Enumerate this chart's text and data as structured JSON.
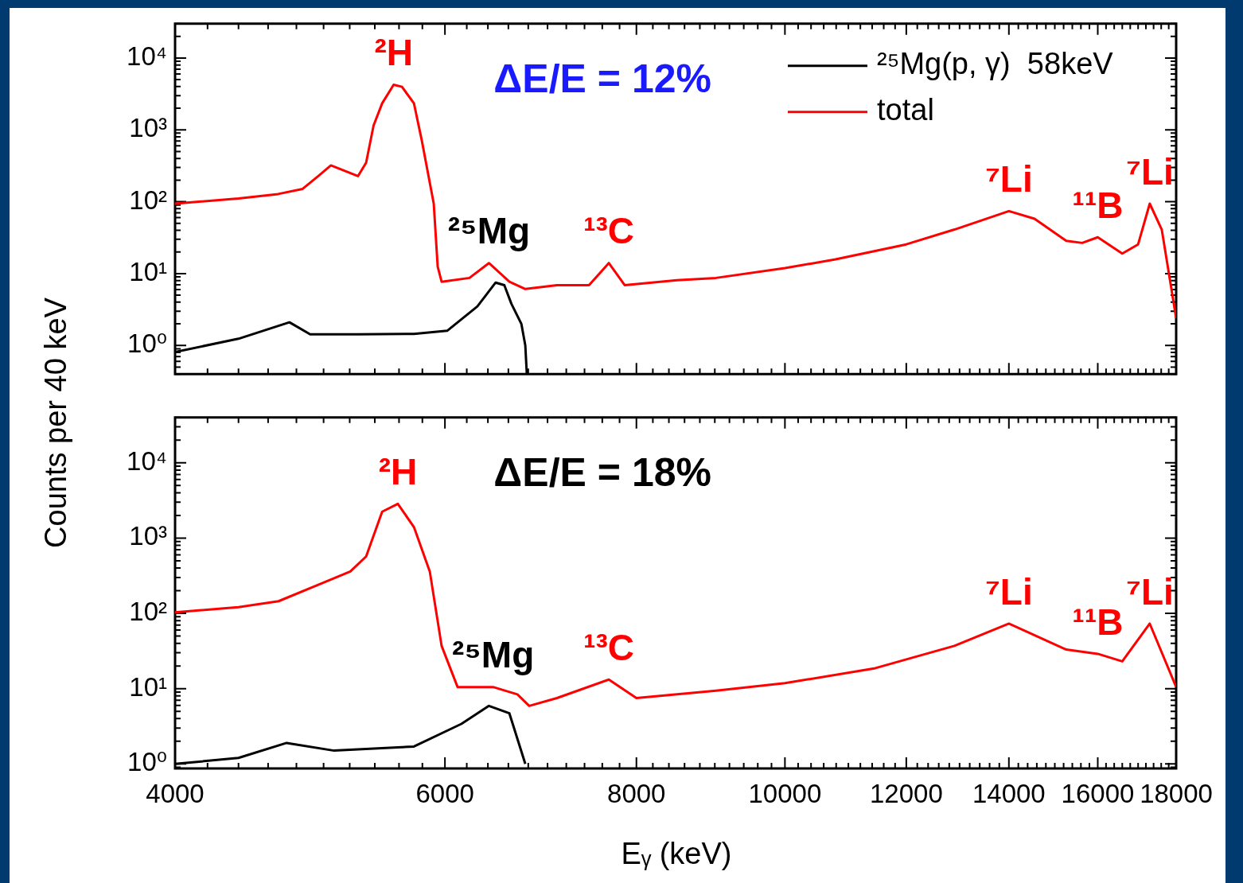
{
  "chart_data": [
    {
      "type": "line",
      "title": "ΔE/E = 12%",
      "ylabel": "Counts per 40 keV",
      "log": "xy",
      "legend": "top right",
      "tick_labels": "y",
      "xlim": [
        4000,
        18000
      ],
      "xticks": [
        4000,
        {
          "value": 4200,
          "label": null
        },
        {
          "value": 4400,
          "label": null
        },
        {
          "value": 4600,
          "label": null
        },
        {
          "value": 4800,
          "label": null
        },
        {
          "value": 5000,
          "label": null
        },
        {
          "value": 5200,
          "label": null
        },
        {
          "value": 5400,
          "label": null
        },
        {
          "value": 5600,
          "label": null
        },
        {
          "value": 5800,
          "label": null
        },
        6000,
        {
          "value": 6200,
          "label": null
        },
        {
          "value": 6400,
          "label": null
        },
        {
          "value": 6600,
          "label": null
        },
        {
          "value": 6800,
          "label": null
        },
        {
          "value": 7000,
          "label": null
        },
        {
          "value": 7200,
          "label": null
        },
        {
          "value": 7400,
          "label": null
        },
        {
          "value": 7600,
          "label": null
        },
        {
          "value": 7800,
          "label": null
        },
        8000,
        {
          "value": 8200,
          "label": null
        },
        {
          "value": 8400,
          "label": null
        },
        {
          "value": 8600,
          "label": null
        },
        {
          "value": 8800,
          "label": null
        },
        {
          "value": 9000,
          "label": null
        },
        {
          "value": 9200,
          "label": null
        },
        {
          "value": 9400,
          "label": null
        },
        {
          "value": 9600,
          "label": null
        },
        {
          "value": 9800,
          "label": null
        },
        10000,
        {
          "value": 10200,
          "label": null
        },
        {
          "value": 10400,
          "label": null
        },
        {
          "value": 10600,
          "label": null
        },
        {
          "value": 10800,
          "label": null
        },
        {
          "value": 11000,
          "label": null
        },
        {
          "value": 11200,
          "label": null
        },
        {
          "value": 11400,
          "label": null
        },
        {
          "value": 11600,
          "label": null
        },
        {
          "value": 11800,
          "label": null
        },
        12000,
        {
          "value": 12200,
          "label": null
        },
        {
          "value": 12400,
          "label": null
        },
        {
          "value": 12600,
          "label": null
        },
        {
          "value": 12800,
          "label": null
        },
        {
          "value": 13000,
          "label": null
        },
        {
          "value": 13200,
          "label": null
        },
        {
          "value": 13400,
          "label": null
        },
        {
          "value": 13600,
          "label": null
        },
        {
          "value": 13800,
          "label": null
        },
        14000,
        {
          "value": 14200,
          "label": null
        },
        {
          "value": 14400,
          "label": null
        },
        {
          "value": 14600,
          "label": null
        },
        {
          "value": 14800,
          "label": null
        },
        {
          "value": 15000,
          "label": null
        },
        {
          "value": 15200,
          "label": null
        },
        {
          "value": 15400,
          "label": null
        },
        {
          "value": 15600,
          "label": null
        },
        {
          "value": 15800,
          "label": null
        },
        16000,
        {
          "value": 16200,
          "label": null
        },
        {
          "value": 16400,
          "label": null
        },
        {
          "value": 16600,
          "label": null
        },
        {
          "value": 16800,
          "label": null
        },
        {
          "value": 17000,
          "label": null
        },
        {
          "value": 17200,
          "label": null
        },
        {
          "value": 17400,
          "label": null
        },
        {
          "value": 17600,
          "label": null
        },
        {
          "value": 17800,
          "label": null
        },
        18000
      ],
      "ylim": [
        0.4,
        30000
      ],
      "yticks": [
        {
          "value": 0.4,
          "label": null
        },
        {
          "value": 0.5,
          "label": null
        },
        {
          "value": 0.6,
          "label": null
        },
        {
          "value": 0.7,
          "label": null
        },
        {
          "value": 0.8,
          "label": null
        },
        {
          "value": 0.9,
          "label": null
        },
        {
          "value": 1,
          "label": "10⁰"
        },
        {
          "value": 2,
          "label": null
        },
        {
          "value": 3,
          "label": null
        },
        {
          "value": 4,
          "label": null
        },
        {
          "value": 5,
          "label": null
        },
        {
          "value": 6,
          "label": null
        },
        {
          "value": 7,
          "label": null
        },
        {
          "value": 8,
          "label": null
        },
        {
          "value": 9,
          "label": null
        },
        {
          "value": 10,
          "label": "10¹"
        },
        {
          "value": 20,
          "label": null
        },
        {
          "value": 30,
          "label": null
        },
        {
          "value": 40,
          "label": null
        },
        {
          "value": 50,
          "label": null
        },
        {
          "value": 60,
          "label": null
        },
        {
          "value": 70,
          "label": null
        },
        {
          "value": 80,
          "label": null
        },
        {
          "value": 90,
          "label": null
        },
        {
          "value": 100,
          "label": "10²"
        },
        {
          "value": 200,
          "label": null
        },
        {
          "value": 300,
          "label": null
        },
        {
          "value": 400,
          "label": null
        },
        {
          "value": 500,
          "label": null
        },
        {
          "value": 600,
          "label": null
        },
        {
          "value": 700,
          "label": null
        },
        {
          "value": 800,
          "label": null
        },
        {
          "value": 900,
          "label": null
        },
        {
          "value": 1000,
          "label": "10³"
        },
        {
          "value": 2000,
          "label": null
        },
        {
          "value": 3000,
          "label": null
        },
        {
          "value": 4000,
          "label": null
        },
        {
          "value": 5000,
          "label": null
        },
        {
          "value": 6000,
          "label": null
        },
        {
          "value": 7000,
          "label": null
        },
        {
          "value": 8000,
          "label": null
        },
        {
          "value": 9000,
          "label": null
        },
        {
          "value": 10000,
          "label": "10⁴"
        },
        {
          "value": 20000,
          "label": null
        },
        {
          "value": 30000,
          "label": null
        }
      ],
      "series": [
        {
          "name": "²⁵Mg(p, γ)  58keV",
          "color": "#000000",
          "x": [
            4000,
            4400,
            4750,
            4900,
            5265,
            5727,
            6020,
            6300,
            6475,
            6560,
            6630,
            6730,
            6770,
            6785
          ],
          "values": [
            0.81,
            1.24,
            2.1,
            1.43,
            1.43,
            1.45,
            1.6,
            3.5,
            7.5,
            6.9,
            3.8,
            2,
            1,
            0.41
          ]
        },
        {
          "name": "total",
          "color": "#ff0000",
          "x": [
            4000,
            4400,
            4670,
            4845,
            4960,
            5055,
            5265,
            5330,
            5390,
            5460,
            5555,
            5625,
            5727,
            5795,
            5900,
            5935,
            5970,
            6225,
            6410,
            6610,
            6770,
            7100,
            7450,
            7675,
            7860,
            8500,
            9015,
            10000,
            10790,
            12000,
            12900,
            13540,
            14000,
            14550,
            15260,
            15630,
            16000,
            16600,
            17000,
            17300,
            17615,
            18000
          ],
          "values": [
            94,
            111,
            128,
            151,
            227,
            320,
            227,
            350,
            1150,
            2340,
            4250,
            3970,
            2340,
            710,
            94,
            12.5,
            7.7,
            8.7,
            14,
            7.7,
            6.1,
            6.9,
            6.9,
            14,
            6.9,
            8.1,
            8.7,
            11.9,
            15.8,
            25.5,
            41,
            58,
            74,
            58,
            28.6,
            26.7,
            32,
            19,
            25.5,
            94,
            41,
            2.4
          ]
        }
      ],
      "annotations": [
        {
          "text": "²H",
          "x": 5555,
          "y": 4250
        },
        {
          "text": "²⁵Mg",
          "x": 6410,
          "y": 14
        },
        {
          "text": "¹³C",
          "x": 7675,
          "y": 14
        },
        {
          "text": "⁷Li",
          "x": 14000,
          "y": 74
        },
        {
          "text": "¹¹B",
          "x": 16000,
          "y": 32
        },
        {
          "text": "⁷Li",
          "x": 17300,
          "y": 94
        }
      ]
    },
    {
      "type": "line",
      "title": "ΔE/E = 18%",
      "xlabel": "Eᵧ (keV)",
      "log": "xy",
      "xlim": [
        4000,
        18000
      ],
      "xticks": [
        4000,
        {
          "value": 4200,
          "label": null
        },
        {
          "value": 4400,
          "label": null
        },
        {
          "value": 4600,
          "label": null
        },
        {
          "value": 4800,
          "label": null
        },
        {
          "value": 5000,
          "label": null
        },
        {
          "value": 5200,
          "label": null
        },
        {
          "value": 5400,
          "label": null
        },
        {
          "value": 5600,
          "label": null
        },
        {
          "value": 5800,
          "label": null
        },
        6000,
        {
          "value": 6200,
          "label": null
        },
        {
          "value": 6400,
          "label": null
        },
        {
          "value": 6600,
          "label": null
        },
        {
          "value": 6800,
          "label": null
        },
        {
          "value": 7000,
          "label": null
        },
        {
          "value": 7200,
          "label": null
        },
        {
          "value": 7400,
          "label": null
        },
        {
          "value": 7600,
          "label": null
        },
        {
          "value": 7800,
          "label": null
        },
        8000,
        {
          "value": 8200,
          "label": null
        },
        {
          "value": 8400,
          "label": null
        },
        {
          "value": 8600,
          "label": null
        },
        {
          "value": 8800,
          "label": null
        },
        {
          "value": 9000,
          "label": null
        },
        {
          "value": 9200,
          "label": null
        },
        {
          "value": 9400,
          "label": null
        },
        {
          "value": 9600,
          "label": null
        },
        {
          "value": 9800,
          "label": null
        },
        10000,
        {
          "value": 10200,
          "label": null
        },
        {
          "value": 10400,
          "label": null
        },
        {
          "value": 10600,
          "label": null
        },
        {
          "value": 10800,
          "label": null
        },
        {
          "value": 11000,
          "label": null
        },
        {
          "value": 11200,
          "label": null
        },
        {
          "value": 11400,
          "label": null
        },
        {
          "value": 11600,
          "label": null
        },
        {
          "value": 11800,
          "label": null
        },
        12000,
        {
          "value": 12200,
          "label": null
        },
        {
          "value": 12400,
          "label": null
        },
        {
          "value": 12600,
          "label": null
        },
        {
          "value": 12800,
          "label": null
        },
        {
          "value": 13000,
          "label": null
        },
        {
          "value": 13200,
          "label": null
        },
        {
          "value": 13400,
          "label": null
        },
        {
          "value": 13600,
          "label": null
        },
        {
          "value": 13800,
          "label": null
        },
        14000,
        {
          "value": 14200,
          "label": null
        },
        {
          "value": 14400,
          "label": null
        },
        {
          "value": 14600,
          "label": null
        },
        {
          "value": 14800,
          "label": null
        },
        {
          "value": 15000,
          "label": null
        },
        {
          "value": 15200,
          "label": null
        },
        {
          "value": 15400,
          "label": null
        },
        {
          "value": 15600,
          "label": null
        },
        {
          "value": 15800,
          "label": null
        },
        16000,
        {
          "value": 16200,
          "label": null
        },
        {
          "value": 16400,
          "label": null
        },
        {
          "value": 16600,
          "label": null
        },
        {
          "value": 16800,
          "label": null
        },
        {
          "value": 17000,
          "label": null
        },
        {
          "value": 17200,
          "label": null
        },
        {
          "value": 17400,
          "label": null
        },
        {
          "value": 17600,
          "label": null
        },
        {
          "value": 17800,
          "label": null
        },
        18000
      ],
      "ylim": [
        0.87,
        40000
      ],
      "yticks": [
        {
          "value": 0.9,
          "label": null
        },
        {
          "value": 1,
          "label": "10⁰"
        },
        {
          "value": 2,
          "label": null
        },
        {
          "value": 3,
          "label": null
        },
        {
          "value": 4,
          "label": null
        },
        {
          "value": 5,
          "label": null
        },
        {
          "value": 6,
          "label": null
        },
        {
          "value": 7,
          "label": null
        },
        {
          "value": 8,
          "label": null
        },
        {
          "value": 9,
          "label": null
        },
        {
          "value": 10,
          "label": "10¹"
        },
        {
          "value": 20,
          "label": null
        },
        {
          "value": 30,
          "label": null
        },
        {
          "value": 40,
          "label": null
        },
        {
          "value": 50,
          "label": null
        },
        {
          "value": 60,
          "label": null
        },
        {
          "value": 70,
          "label": null
        },
        {
          "value": 80,
          "label": null
        },
        {
          "value": 90,
          "label": null
        },
        {
          "value": 100,
          "label": "10²"
        },
        {
          "value": 200,
          "label": null
        },
        {
          "value": 300,
          "label": null
        },
        {
          "value": 400,
          "label": null
        },
        {
          "value": 500,
          "label": null
        },
        {
          "value": 600,
          "label": null
        },
        {
          "value": 700,
          "label": null
        },
        {
          "value": 800,
          "label": null
        },
        {
          "value": 900,
          "label": null
        },
        {
          "value": 1000,
          "label": "10³"
        },
        {
          "value": 2000,
          "label": null
        },
        {
          "value": 3000,
          "label": null
        },
        {
          "value": 4000,
          "label": null
        },
        {
          "value": 5000,
          "label": null
        },
        {
          "value": 6000,
          "label": null
        },
        {
          "value": 7000,
          "label": null
        },
        {
          "value": 8000,
          "label": null
        },
        {
          "value": 9000,
          "label": null
        },
        {
          "value": 10000,
          "label": "10⁴"
        },
        {
          "value": 20000,
          "label": null
        },
        {
          "value": 30000,
          "label": null
        },
        {
          "value": 40000,
          "label": null
        }
      ],
      "series": [
        {
          "color": "#000000",
          "x": [
            4000,
            4400,
            4730,
            5080,
            5727,
            6150,
            6410,
            6610,
            6770
          ],
          "values": [
            1.0,
            1.2,
            1.9,
            1.5,
            1.7,
            3.4,
            5.9,
            4.7,
            1.0
          ]
        },
        {
          "color": "#ff0000",
          "x": [
            4000,
            4400,
            4673,
            4960,
            5205,
            5330,
            5460,
            5590,
            5727,
            5865,
            5970,
            6115,
            6450,
            6690,
            6810,
            7100,
            7675,
            8000,
            9015,
            10000,
            11455,
            12900,
            14000,
            15260,
            16000,
            16600,
            17300,
            18000
          ],
          "values": [
            103,
            121,
            145,
            240,
            360,
            570,
            2240,
            2850,
            1400,
            360,
            37,
            10.5,
            10.5,
            8.4,
            5.9,
            7.5,
            13.2,
            7.5,
            9.4,
            11.8,
            18.7,
            37,
            73,
            33,
            29,
            23,
            73,
            10.5
          ]
        }
      ],
      "annotations": [
        {
          "text": "²H",
          "x": 5590,
          "y": 2850
        },
        {
          "text": "²⁵Mg",
          "x": 6450,
          "y": 10.5
        },
        {
          "text": "¹³C",
          "x": 7675,
          "y": 13.2
        },
        {
          "text": "⁷Li",
          "x": 14000,
          "y": 73
        },
        {
          "text": "¹¹B",
          "x": 16000,
          "y": 29
        },
        {
          "text": "⁷Li",
          "x": 17300,
          "y": 73
        }
      ]
    }
  ]
}
